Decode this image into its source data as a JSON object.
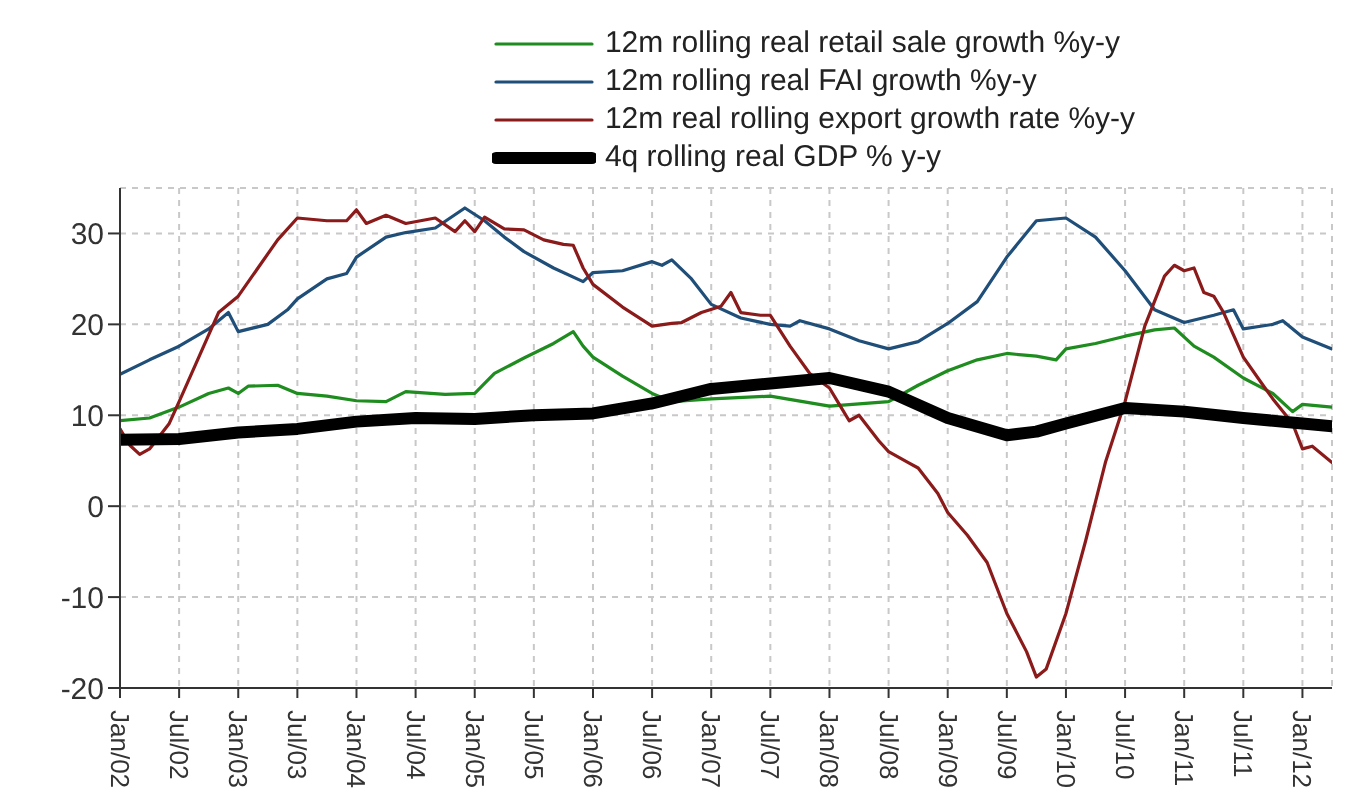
{
  "chart_data": {
    "type": "line",
    "legend": "top",
    "grid": true,
    "marker": "none",
    "line_style": "solid",
    "xlim": [
      "2002-01",
      "2012-04"
    ],
    "xticks": [
      {
        "value": "2002-01",
        "label": "Jan/02"
      },
      {
        "value": "2002-07",
        "label": "Jul/02"
      },
      {
        "value": "2003-01",
        "label": "Jan/03"
      },
      {
        "value": "2003-07",
        "label": "Jul/03"
      },
      {
        "value": "2004-01",
        "label": "Jan/04"
      },
      {
        "value": "2004-07",
        "label": "Jul/04"
      },
      {
        "value": "2005-01",
        "label": "Jan/05"
      },
      {
        "value": "2005-07",
        "label": "Jul/05"
      },
      {
        "value": "2006-01",
        "label": "Jan/06"
      },
      {
        "value": "2006-07",
        "label": "Jul/06"
      },
      {
        "value": "2007-01",
        "label": "Jan/07"
      },
      {
        "value": "2007-07",
        "label": "Jul/07"
      },
      {
        "value": "2008-01",
        "label": "Jan/08"
      },
      {
        "value": "2008-07",
        "label": "Jul/08"
      },
      {
        "value": "2009-01",
        "label": "Jan/09"
      },
      {
        "value": "2009-07",
        "label": "Jul/09"
      },
      {
        "value": "2010-01",
        "label": "Jan/10"
      },
      {
        "value": "2010-07",
        "label": "Jul/10"
      },
      {
        "value": "2011-01",
        "label": "Jan/11"
      },
      {
        "value": "2011-07",
        "label": "Jul/11"
      },
      {
        "value": "2012-01",
        "label": "Jan/12"
      }
    ],
    "ylim": [
      -20,
      35
    ],
    "yticks": [
      -20,
      -10,
      0,
      10,
      20,
      30
    ],
    "series": [
      {
        "name": "12m rolling real retail sale growth %y-y",
        "color": "#1e8c1e",
        "x": [
          "2002-01",
          "2002-04",
          "2002-07",
          "2002-10",
          "2002-12",
          "2003-01",
          "2003-02",
          "2003-05",
          "2003-07",
          "2003-10",
          "2004-01",
          "2004-04",
          "2004-06",
          "2004-10",
          "2005-01",
          "2005-03",
          "2005-06",
          "2005-09",
          "2005-11",
          "2005-12",
          "2006-01",
          "2006-04",
          "2006-07",
          "2006-09",
          "2007-01",
          "2007-07",
          "2008-01",
          "2008-07",
          "2008-10",
          "2009-01",
          "2009-04",
          "2009-07",
          "2009-10",
          "2009-12",
          "2010-01",
          "2010-04",
          "2010-07",
          "2010-10",
          "2010-12",
          "2011-02",
          "2011-04",
          "2011-07",
          "2011-10",
          "2011-12",
          "2012-01",
          "2012-04"
        ],
        "values": [
          9.4,
          9.7,
          10.9,
          12.4,
          13.0,
          12.4,
          13.2,
          13.3,
          12.4,
          12.1,
          11.6,
          11.5,
          12.6,
          12.3,
          12.4,
          14.6,
          16.3,
          17.9,
          19.2,
          17.6,
          16.4,
          14.3,
          12.4,
          11.5,
          11.8,
          12.1,
          11.0,
          11.5,
          13.3,
          14.9,
          16.1,
          16.8,
          16.5,
          16.1,
          17.3,
          17.9,
          18.7,
          19.4,
          19.6,
          17.6,
          16.4,
          14.1,
          12.4,
          10.4,
          11.2,
          10.9
        ]
      },
      {
        "name": "12m rolling real FAI growth %y-y",
        "color": "#1f4e79",
        "x": [
          "2002-01",
          "2002-04",
          "2002-07",
          "2002-10",
          "2002-12",
          "2003-01",
          "2003-04",
          "2003-06",
          "2003-07",
          "2003-10",
          "2003-12",
          "2004-01",
          "2004-04",
          "2004-06",
          "2004-09",
          "2004-12",
          "2005-02",
          "2005-04",
          "2005-06",
          "2005-09",
          "2005-12",
          "2006-01",
          "2006-04",
          "2006-07",
          "2006-08",
          "2006-09",
          "2006-11",
          "2007-01",
          "2007-04",
          "2007-07",
          "2007-09",
          "2007-10",
          "2008-01",
          "2008-04",
          "2008-07",
          "2008-10",
          "2009-01",
          "2009-04",
          "2009-07",
          "2009-10",
          "2010-01",
          "2010-04",
          "2010-07",
          "2010-10",
          "2011-01",
          "2011-04",
          "2011-06",
          "2011-07",
          "2011-10",
          "2011-11",
          "2012-01",
          "2012-04"
        ],
        "values": [
          14.5,
          16.1,
          17.6,
          19.5,
          21.3,
          19.2,
          20.0,
          21.6,
          22.8,
          25.0,
          25.6,
          27.4,
          29.6,
          30.1,
          30.6,
          32.8,
          31.4,
          29.6,
          28.0,
          26.2,
          24.7,
          25.7,
          25.9,
          26.9,
          26.5,
          27.1,
          25.0,
          22.2,
          20.7,
          20.0,
          19.8,
          20.4,
          19.5,
          18.2,
          17.3,
          18.1,
          20.1,
          22.5,
          27.4,
          31.4,
          31.7,
          29.6,
          25.9,
          21.6,
          20.2,
          21.0,
          21.6,
          19.5,
          20.0,
          20.4,
          18.6,
          17.3
        ]
      },
      {
        "name": "12m real rolling export growth rate %y-y",
        "color": "#8b1a1a",
        "x": [
          "2002-01",
          "2002-02",
          "2002-03",
          "2002-04",
          "2002-06",
          "2002-07",
          "2002-09",
          "2002-11",
          "2003-01",
          "2003-03",
          "2003-05",
          "2003-07",
          "2003-10",
          "2003-12",
          "2004-01",
          "2004-02",
          "2004-04",
          "2004-06",
          "2004-09",
          "2004-11",
          "2004-12",
          "2005-01",
          "2005-02",
          "2005-04",
          "2005-06",
          "2005-08",
          "2005-10",
          "2005-11",
          "2005-12",
          "2006-01",
          "2006-04",
          "2006-07",
          "2006-09",
          "2006-10",
          "2006-12",
          "2007-02",
          "2007-03",
          "2007-04",
          "2007-06",
          "2007-07",
          "2007-09",
          "2007-11",
          "2008-01",
          "2008-02",
          "2008-03",
          "2008-04",
          "2008-06",
          "2008-07",
          "2008-09",
          "2008-10",
          "2008-12",
          "2009-01",
          "2009-03",
          "2009-05",
          "2009-07",
          "2009-09",
          "2009-10",
          "2009-11",
          "2010-01",
          "2010-03",
          "2010-05",
          "2010-07",
          "2010-09",
          "2010-11",
          "2010-12",
          "2011-01",
          "2011-02",
          "2011-03",
          "2011-04",
          "2011-05",
          "2011-07",
          "2011-09",
          "2011-10",
          "2011-12",
          "2012-01",
          "2012-02",
          "2012-04"
        ],
        "values": [
          8.5,
          6.7,
          5.7,
          6.3,
          9.1,
          11.5,
          16.4,
          21.3,
          23.1,
          26.2,
          29.3,
          31.7,
          31.4,
          31.4,
          32.6,
          31.1,
          32.0,
          31.1,
          31.7,
          30.2,
          31.4,
          30.2,
          31.8,
          30.5,
          30.4,
          29.3,
          28.8,
          28.7,
          26.2,
          24.4,
          21.9,
          19.8,
          20.1,
          20.2,
          21.3,
          22.0,
          23.5,
          21.3,
          21.0,
          21.0,
          17.6,
          14.6,
          13.0,
          11.2,
          9.4,
          10.0,
          7.2,
          6.0,
          4.8,
          4.2,
          1.4,
          -0.7,
          -3.2,
          -6.2,
          -11.8,
          -16.0,
          -18.8,
          -17.9,
          -11.8,
          -3.8,
          4.8,
          11.5,
          19.8,
          25.3,
          26.5,
          25.9,
          26.2,
          23.5,
          23.1,
          21.3,
          16.4,
          13.3,
          11.8,
          9.1,
          6.3,
          6.6,
          4.8
        ]
      },
      {
        "name": "4q rolling real GDP % y-y",
        "color": "#000000",
        "x": [
          "2002-01",
          "2002-07",
          "2003-01",
          "2003-07",
          "2004-01",
          "2004-07",
          "2005-01",
          "2005-07",
          "2006-01",
          "2006-07",
          "2007-01",
          "2007-07",
          "2008-01",
          "2008-07",
          "2009-01",
          "2009-07",
          "2009-10",
          "2010-01",
          "2010-07",
          "2011-01",
          "2011-07",
          "2012-01",
          "2012-04"
        ],
        "values": [
          7.3,
          7.4,
          8.1,
          8.5,
          9.3,
          9.7,
          9.6,
          10.0,
          10.2,
          11.3,
          12.9,
          13.5,
          14.1,
          12.6,
          9.7,
          7.8,
          8.2,
          9.1,
          10.8,
          10.4,
          9.7,
          9.1,
          8.8
        ]
      }
    ]
  }
}
